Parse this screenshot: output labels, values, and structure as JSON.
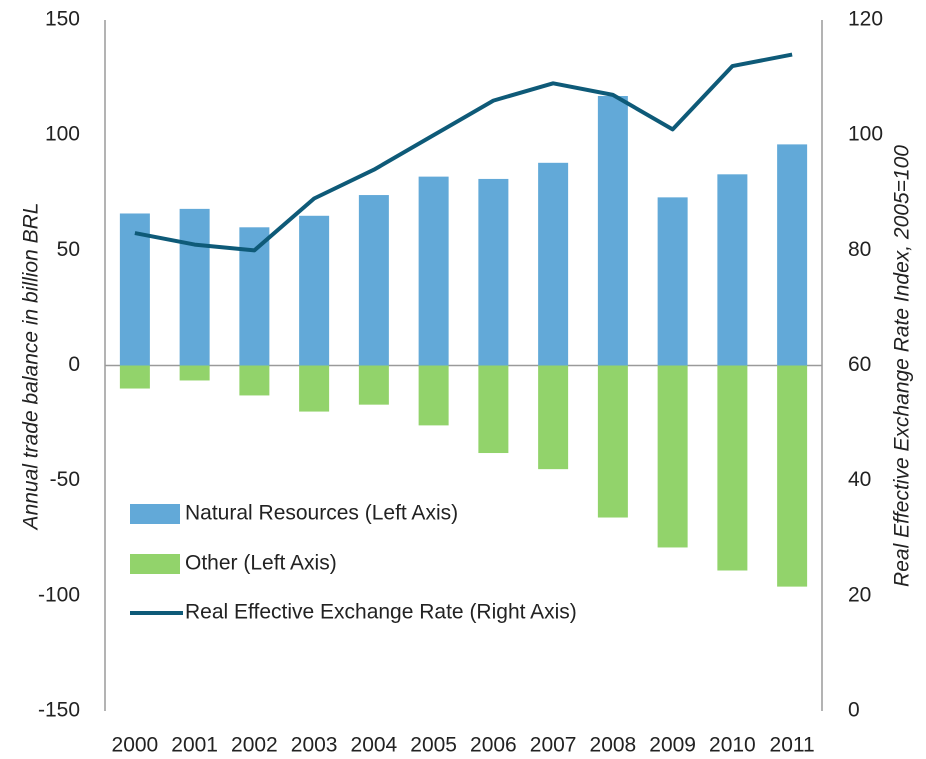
{
  "chart_data": {
    "type": "bar_line",
    "y_label": "Annual trade balance in billion BRL",
    "y2_label": "Real Effective Exchange Rate Index, 2005=100",
    "categories": [
      "2000",
      "2001",
      "2002",
      "2003",
      "2004",
      "2005",
      "2006",
      "2007",
      "2008",
      "2009",
      "2010",
      "2011"
    ],
    "series": [
      {
        "name": "Natural Resources (Left Axis)",
        "type": "bar",
        "color": "#62a9d8",
        "values": [
          66,
          68,
          60,
          65,
          74,
          82,
          81,
          88,
          117,
          73,
          83,
          96
        ]
      },
      {
        "name": "Other (Left Axis)",
        "type": "bar",
        "color": "#92d36b",
        "values": [
          -10,
          -6.5,
          -13,
          -20,
          -17,
          -26,
          -38,
          -45,
          -66,
          -79,
          -89,
          -96
        ]
      },
      {
        "name": "Real Effective Exchange Rate (Right Axis)",
        "type": "line",
        "axis": "y2",
        "color": "#0e5a78",
        "values": [
          83,
          81,
          80,
          89,
          94,
          100,
          106,
          109,
          107,
          101,
          112,
          114
        ]
      }
    ],
    "ylim": [
      -150,
      150
    ],
    "yticks": [
      -150,
      -100,
      -50,
      0,
      50,
      100,
      150
    ],
    "y2lim": [
      0,
      120
    ],
    "y2ticks": [
      0,
      20,
      40,
      60,
      80,
      100,
      120
    ],
    "grid": false,
    "legend": "lower left"
  }
}
